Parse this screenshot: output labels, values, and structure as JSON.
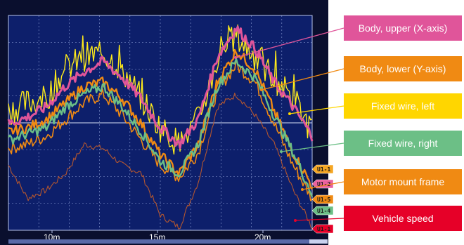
{
  "chart_data": {
    "type": "line",
    "x_ticks": [
      "10m",
      "15m",
      "20m"
    ],
    "series": [
      {
        "name": "Body, upper (X-axis)",
        "color": "#e0559a",
        "tag": "U1-1",
        "values": [
          50,
          53,
          58,
          68,
          75,
          80,
          72,
          62,
          48,
          40,
          52,
          82,
          96,
          86,
          70,
          58,
          44
        ]
      },
      {
        "name": "Body, lower (Y-axis)",
        "color": "#f08a13",
        "tag": "U1-2",
        "values": [
          46,
          48,
          52,
          60,
          68,
          70,
          62,
          50,
          35,
          26,
          40,
          70,
          85,
          76,
          56,
          36,
          20
        ]
      },
      {
        "name": "Fixed wire, left",
        "color": "#ffeb1a",
        "tag": "U1-5",
        "values": [
          56,
          60,
          62,
          76,
          82,
          84,
          76,
          62,
          48,
          40,
          52,
          80,
          92,
          82,
          72,
          62,
          46
        ]
      },
      {
        "name": "Fixed wire, right",
        "color": "#6cbf86",
        "tag": "U1-4",
        "values": [
          42,
          45,
          48,
          58,
          64,
          68,
          58,
          46,
          32,
          26,
          40,
          68,
          80,
          72,
          54,
          36,
          16
        ]
      },
      {
        "name": "Motor mount frame",
        "color": "#f08a13",
        "tag": "U1-3",
        "values": [
          38,
          40,
          44,
          52,
          60,
          64,
          54,
          42,
          30,
          24,
          36,
          66,
          78,
          70,
          50,
          30,
          14
        ]
      },
      {
        "name": "Vehicle speed",
        "color": "#b3562f",
        "tag": "U1-1",
        "values": [
          30,
          14,
          18,
          26,
          40,
          38,
          30,
          26,
          6,
          0,
          22,
          58,
          64,
          54,
          40,
          18,
          0
        ]
      }
    ],
    "callouts": [
      {
        "label": "Body, upper (X-axis)",
        "color": "#e0559a"
      },
      {
        "label": "Body, lower (Y-axis)",
        "color": "#f08a13"
      },
      {
        "label": "Fixed wire, left",
        "color": "#ffd600"
      },
      {
        "label": "Fixed wire, right",
        "color": "#6cbf86"
      },
      {
        "label": "Motor mount frame",
        "color": "#f08a13"
      },
      {
        "label": "Vehicle speed",
        "color": "#e60028"
      }
    ],
    "tag_colors": [
      "#f5a623",
      "#e9629f",
      "#f08a13",
      "#6cbf86",
      "#e60028"
    ],
    "tags": [
      "U1-1",
      "U1-2",
      "U1-5",
      "U1-4",
      "U1-1"
    ],
    "grid": true,
    "screen_background": "#0d1f6b"
  }
}
